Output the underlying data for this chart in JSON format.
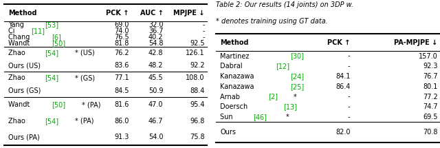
{
  "left_table": {
    "headers": [
      "Method",
      "PCK ↑",
      "AUC ↑",
      "MPJPE ↓"
    ],
    "rows_group1": [
      [
        [
          "Yang ",
          "#000000"
        ],
        [
          "[53]",
          "#00aa00"
        ],
        [
          "",
          "#000000"
        ],
        "69.0",
        "32.0",
        "-"
      ],
      [
        [
          "Ci ",
          "#000000"
        ],
        [
          "[11]",
          "#00aa00"
        ],
        [
          "",
          "#000000"
        ],
        "74.0",
        "36.7",
        "-"
      ],
      [
        [
          "Chang ",
          "#000000"
        ],
        [
          "[6]",
          "#00aa00"
        ],
        [
          "",
          "#000000"
        ],
        "76.5",
        "40.2",
        "-"
      ],
      [
        [
          "Wandt ",
          "#000000"
        ],
        [
          "[50]",
          "#00aa00"
        ],
        [
          "",
          "#000000"
        ],
        "81.8",
        "54.8",
        "92.5"
      ]
    ],
    "rows_group2": [
      [
        [
          "Zhao ",
          "#000000"
        ],
        [
          "[54]",
          "#00aa00"
        ],
        [
          "* (US)",
          "#000000"
        ],
        "76.2",
        "42.8",
        "126.1"
      ],
      [
        [
          "Ours (US)",
          "#000000"
        ],
        [
          "",
          "#000000"
        ],
        [
          "",
          "#000000"
        ],
        "83.6",
        "48.2",
        "92.2"
      ]
    ],
    "rows_group3": [
      [
        [
          "Zhao ",
          "#000000"
        ],
        [
          "[54]",
          "#00aa00"
        ],
        [
          "* (GS)",
          "#000000"
        ],
        "77.1",
        "45.5",
        "108.0"
      ],
      [
        [
          "Ours (GS)",
          "#000000"
        ],
        [
          "",
          "#000000"
        ],
        [
          "",
          "#000000"
        ],
        "84.5",
        "50.9",
        "88.4"
      ]
    ],
    "rows_group4": [
      [
        [
          "Wandt ",
          "#000000"
        ],
        [
          "[50]",
          "#00aa00"
        ],
        [
          "* (PA)",
          "#000000"
        ],
        "81.6",
        "47.0",
        "95.4"
      ],
      [
        [
          "Zhao ",
          "#000000"
        ],
        [
          "[54]",
          "#00aa00"
        ],
        [
          "* (PA)",
          "#000000"
        ],
        "86.0",
        "46.7",
        "96.8"
      ],
      [
        [
          "Ours (PA)",
          "#000000"
        ],
        [
          "",
          "#000000"
        ],
        [
          "",
          "#000000"
        ],
        "91.3",
        "54.0",
        "75.8"
      ]
    ]
  },
  "right_table": {
    "caption_line1": "Table 2: Our results (14 joints) on 3DP w.",
    "caption_line2": "* denotes training using GT data.",
    "headers": [
      "Method",
      "PCK ↑",
      "PA-MPJPE ↓"
    ],
    "rows_group1": [
      [
        [
          "Martinez ",
          "#000000"
        ],
        [
          "[30]",
          "#00aa00"
        ],
        [
          "",
          "#000000"
        ],
        "-",
        "157.0"
      ],
      [
        [
          "Dabral ",
          "#000000"
        ],
        [
          "[12]",
          "#00aa00"
        ],
        [
          "",
          "#000000"
        ],
        "-",
        "92.3"
      ],
      [
        [
          "Kanazawa ",
          "#000000"
        ],
        [
          "[24]",
          "#00aa00"
        ],
        [
          "",
          "#000000"
        ],
        "84.1",
        "76.7"
      ],
      [
        [
          "Kanazawa ",
          "#000000"
        ],
        [
          "[25]",
          "#00aa00"
        ],
        [
          "",
          "#000000"
        ],
        "86.4",
        "80.1"
      ],
      [
        [
          "Arnab ",
          "#000000"
        ],
        [
          "[2]",
          "#00aa00"
        ],
        [
          "*",
          "#000000"
        ],
        "-",
        "77.2"
      ],
      [
        [
          "Doersch ",
          "#000000"
        ],
        [
          "[13]",
          "#00aa00"
        ],
        [
          "",
          "#000000"
        ],
        "-",
        "74.7"
      ],
      [
        [
          "Sun ",
          "#000000"
        ],
        [
          "[46]",
          "#00aa00"
        ],
        [
          "*",
          "#000000"
        ],
        "-",
        "69.5"
      ]
    ],
    "rows_group2": [
      [
        [
          "Ours",
          "#000000"
        ],
        [
          "",
          "#000000"
        ],
        [
          "",
          "#000000"
        ],
        "82.0",
        "70.8"
      ]
    ]
  },
  "line_color": "#000000",
  "text_color": "#000000",
  "green_color": "#00aa00",
  "font_size": 7.0,
  "header_font_size": 7.0
}
